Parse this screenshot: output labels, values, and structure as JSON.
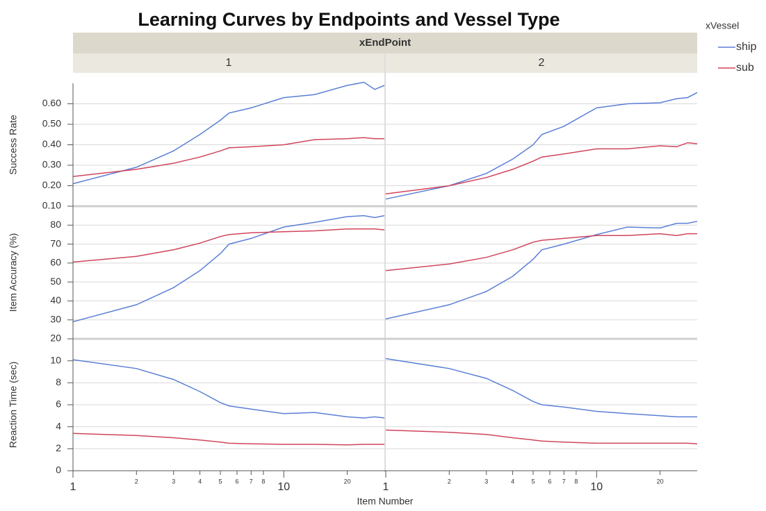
{
  "chart_data": {
    "type": "line",
    "title": "Learning Curves by Endpoints and Vessel Type",
    "x_label": "Item Number",
    "facet_title": "xEndPoint",
    "facets": [
      "1",
      "2"
    ],
    "legend_title": "xVessel",
    "log_x": true,
    "grid": true,
    "xlim": [
      1,
      30
    ],
    "xticks": [
      1,
      2,
      3,
      4,
      5,
      6,
      7,
      8,
      10,
      20
    ],
    "x": [
      1,
      2,
      3,
      4,
      5,
      5.5,
      7,
      10,
      14,
      20,
      24,
      27,
      30
    ],
    "rows": [
      {
        "y_label": "Success Rate",
        "ylim": [
          0.1,
          0.7
        ],
        "yticks": [
          {
            "value": 0.1,
            "label": "0.10"
          },
          {
            "value": 0.2,
            "label": "0.20"
          },
          {
            "value": 0.3,
            "label": "0.30"
          },
          {
            "value": 0.4,
            "label": "0.40"
          },
          {
            "value": 0.5,
            "label": "0.50"
          },
          {
            "value": 0.6,
            "label": "0.60"
          }
        ],
        "panels": [
          {
            "series": [
              {
                "name": "ship",
                "color": "#5b7fd6",
                "values": [
                  0.21,
                  0.29,
                  0.37,
                  0.45,
                  0.52,
                  0.555,
                  0.58,
                  0.63,
                  0.645,
                  0.69,
                  0.705,
                  0.67,
                  0.69
                ]
              },
              {
                "name": "sub",
                "color": "#d0445c",
                "values": [
                  0.245,
                  0.28,
                  0.31,
                  0.34,
                  0.37,
                  0.385,
                  0.39,
                  0.4,
                  0.425,
                  0.43,
                  0.435,
                  0.43,
                  0.43
                ]
              }
            ]
          },
          {
            "series": [
              {
                "name": "ship",
                "color": "#5b7fd6",
                "values": [
                  0.135,
                  0.2,
                  0.26,
                  0.33,
                  0.4,
                  0.45,
                  0.49,
                  0.58,
                  0.6,
                  0.605,
                  0.625,
                  0.63,
                  0.655
                ]
              },
              {
                "name": "sub",
                "color": "#d0445c",
                "values": [
                  0.16,
                  0.2,
                  0.24,
                  0.28,
                  0.32,
                  0.34,
                  0.355,
                  0.38,
                  0.38,
                  0.395,
                  0.39,
                  0.41,
                  0.405
                ]
              }
            ]
          }
        ]
      },
      {
        "y_label": "Item Accuracy (%)",
        "ylim": [
          20,
          90
        ],
        "yticks": [
          20,
          30,
          40,
          50,
          60,
          70,
          80
        ],
        "panels": [
          {
            "series": [
              {
                "name": "ship",
                "color": "#5b7fd6",
                "values": [
                  29,
                  38,
                  47,
                  56,
                  65,
                  70,
                  73,
                  79,
                  81.5,
                  84.5,
                  85,
                  84,
                  85
                ]
              },
              {
                "name": "sub",
                "color": "#d0445c",
                "values": [
                  60.5,
                  63.5,
                  67,
                  70.5,
                  74,
                  75,
                  76,
                  76.5,
                  77,
                  78,
                  78,
                  78,
                  77.5
                ]
              }
            ]
          },
          {
            "series": [
              {
                "name": "ship",
                "color": "#5b7fd6",
                "values": [
                  30.5,
                  38,
                  45,
                  53,
                  62,
                  67,
                  70,
                  75,
                  79,
                  78.5,
                  81,
                  81,
                  82
                ]
              },
              {
                "name": "sub",
                "color": "#d0445c",
                "values": [
                  56,
                  59.5,
                  63,
                  67,
                  71,
                  72,
                  73,
                  74.5,
                  74.5,
                  75.5,
                  74.5,
                  75.5,
                  75.5
                ]
              }
            ]
          }
        ]
      },
      {
        "y_label": "Reaction Time (sec)",
        "ylim": [
          0,
          12
        ],
        "yticks": [
          0,
          2,
          4,
          6,
          8,
          10
        ],
        "panels": [
          {
            "series": [
              {
                "name": "ship",
                "color": "#5b7fd6",
                "values": [
                  10.1,
                  9.3,
                  8.3,
                  7.2,
                  6.2,
                  5.9,
                  5.6,
                  5.2,
                  5.3,
                  4.9,
                  4.8,
                  4.9,
                  4.8
                ]
              },
              {
                "name": "sub",
                "color": "#d0445c",
                "values": [
                  3.4,
                  3.2,
                  3.0,
                  2.8,
                  2.6,
                  2.5,
                  2.45,
                  2.4,
                  2.4,
                  2.35,
                  2.4,
                  2.4,
                  2.4
                ]
              }
            ]
          },
          {
            "series": [
              {
                "name": "ship",
                "color": "#5b7fd6",
                "values": [
                  10.2,
                  9.3,
                  8.4,
                  7.3,
                  6.3,
                  6.0,
                  5.8,
                  5.4,
                  5.2,
                  5.0,
                  4.9,
                  4.9,
                  4.9
                ]
              },
              {
                "name": "sub",
                "color": "#d0445c",
                "values": [
                  3.7,
                  3.5,
                  3.3,
                  3.0,
                  2.8,
                  2.7,
                  2.6,
                  2.5,
                  2.5,
                  2.5,
                  2.5,
                  2.5,
                  2.45
                ]
              }
            ]
          }
        ]
      }
    ]
  }
}
